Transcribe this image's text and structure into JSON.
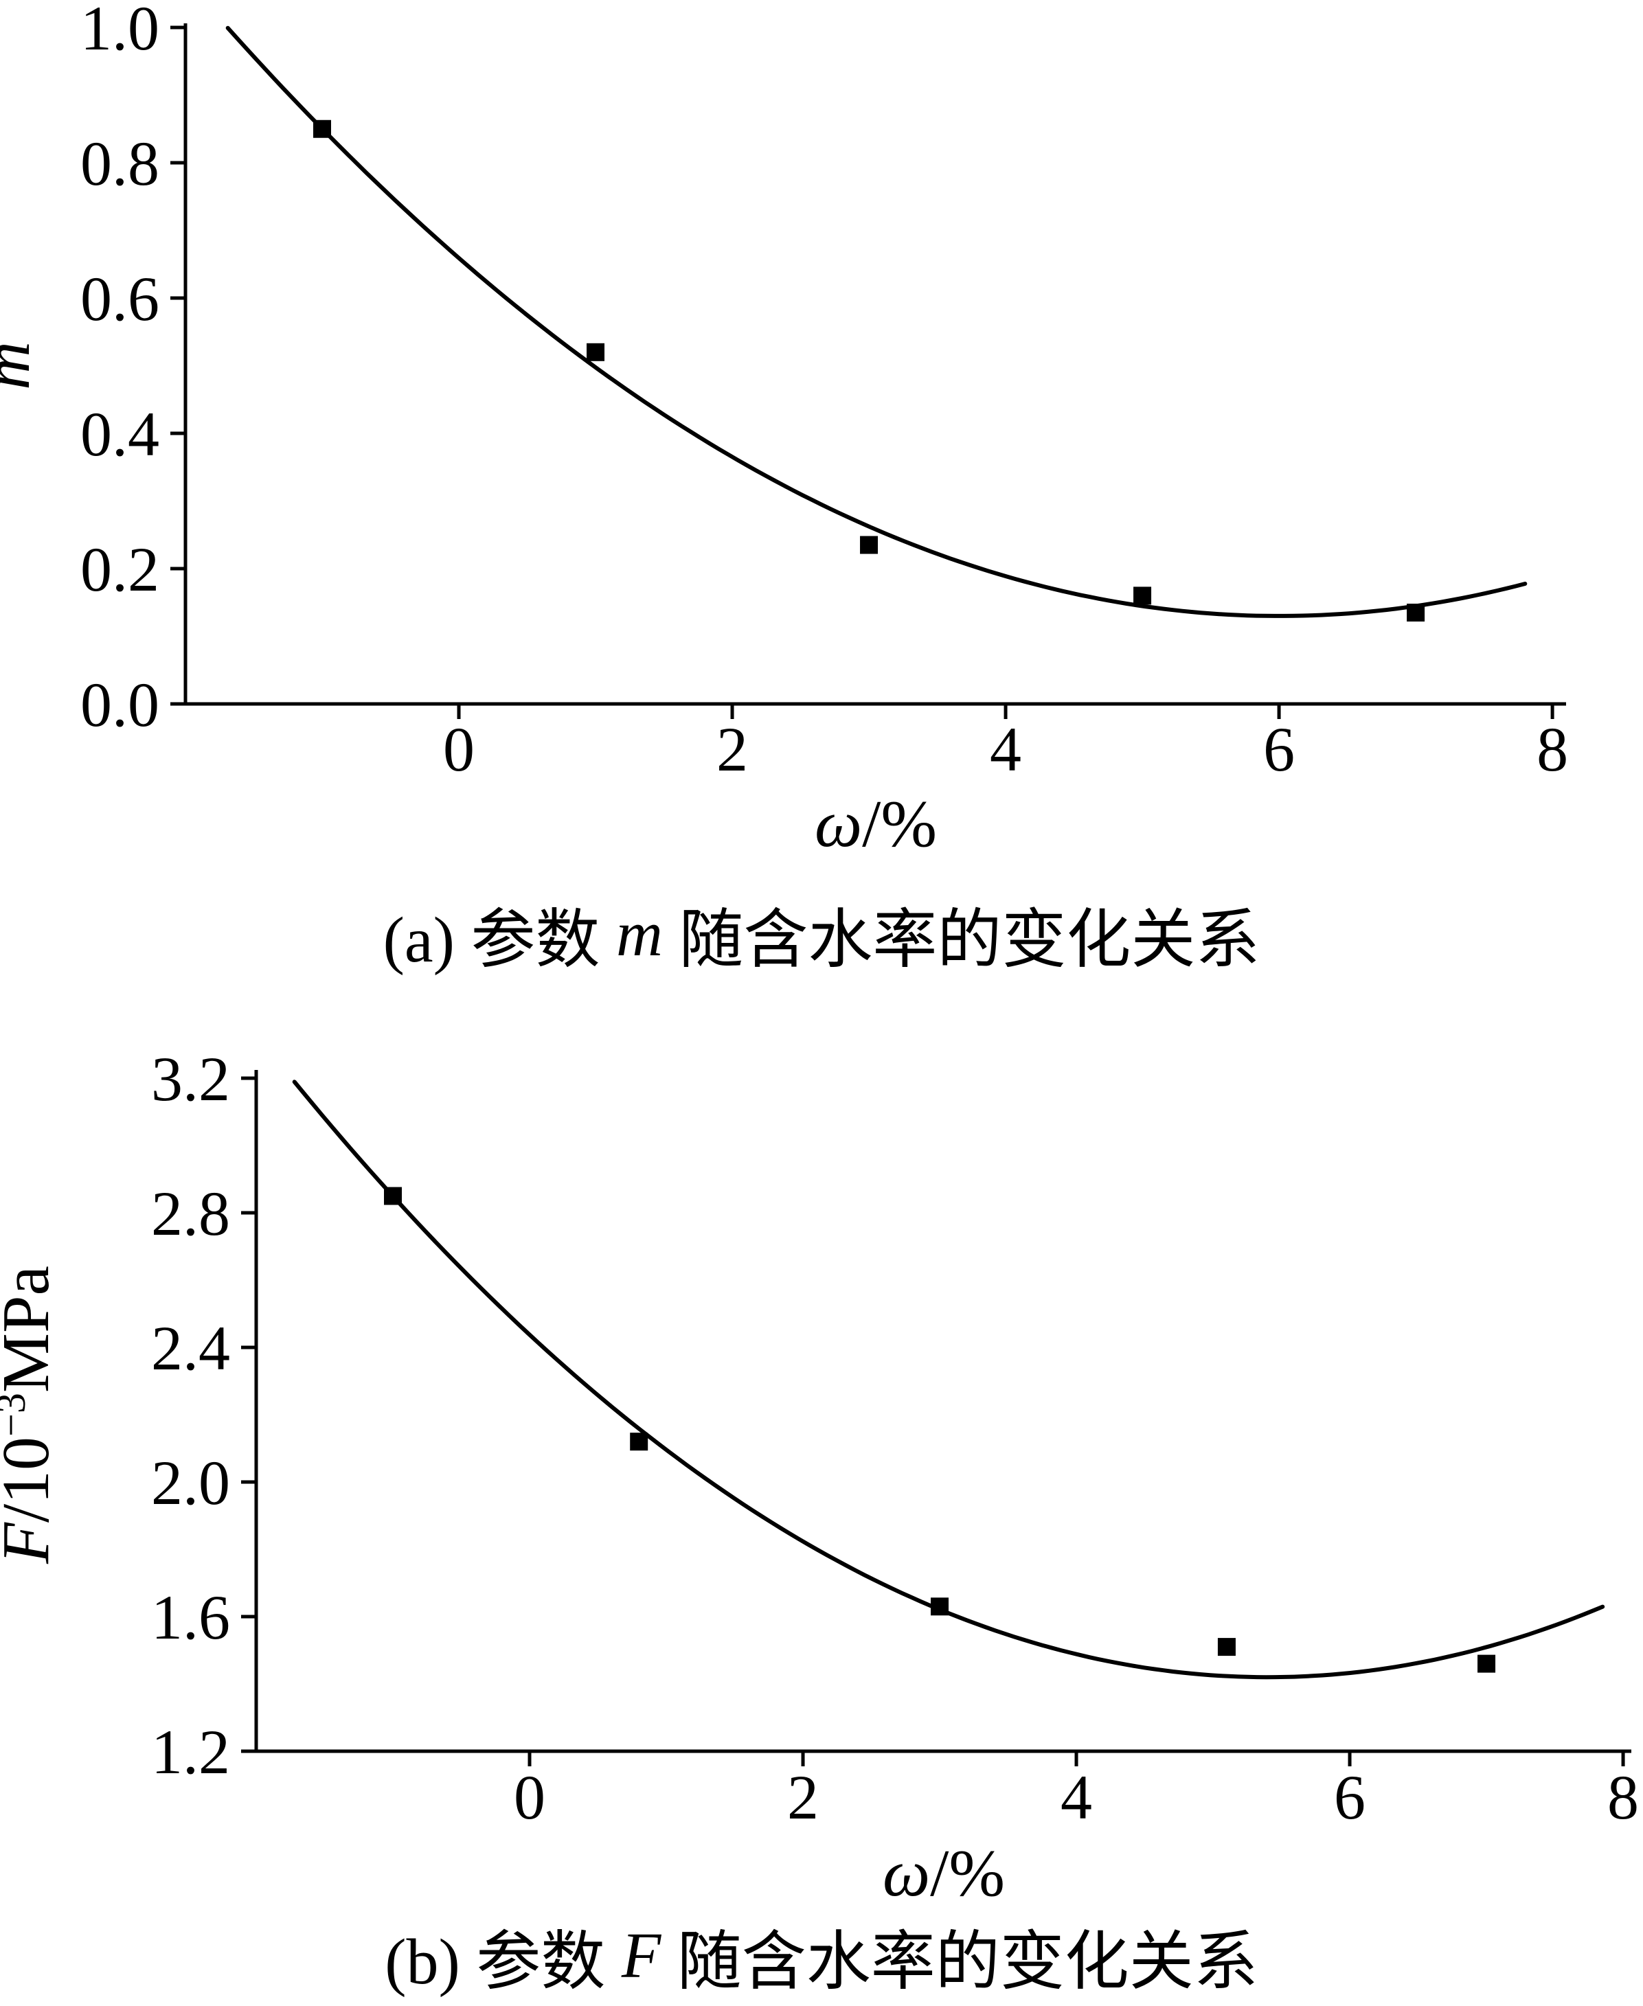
{
  "page": {
    "background": "#ffffff",
    "ink_color": "#000000"
  },
  "chart_data": [
    {
      "id": "a",
      "type": "scatter",
      "title": "",
      "xlabel": "ω/%",
      "xlabel_italic": "ω",
      "xlabel_rest": "/%",
      "ylabel": "m",
      "ylabel_parts": {
        "italic": "m",
        "pre": "",
        "sup": "",
        "unit": ""
      },
      "xlim": [
        -2,
        8.1
      ],
      "ylim": [
        0,
        1.0
      ],
      "x_ticks": [
        "0",
        "2",
        "4",
        "6",
        "8"
      ],
      "y_ticks": [
        "0.0",
        "0.2",
        "0.4",
        "0.6",
        "0.8",
        "1.0"
      ],
      "grid": false,
      "legend": "none",
      "marker": "filled-square",
      "points": [
        [
          -1.0,
          0.85
        ],
        [
          1.0,
          0.52
        ],
        [
          3.0,
          0.235
        ],
        [
          5.0,
          0.16
        ],
        [
          7.0,
          0.135
        ]
      ],
      "fit_curve": {
        "type": "quadratic",
        "a": 0.0147,
        "vertex_x": 6.0,
        "vertex_y": 0.13,
        "x_start": -1.69,
        "x_end": 7.8
      },
      "caption": {
        "prefix": "(a) 参数 ",
        "italic": "m",
        "suffix": " 随含水率的变化关系"
      }
    },
    {
      "id": "b",
      "type": "scatter",
      "title": "",
      "xlabel": "ω/%",
      "xlabel_italic": "ω",
      "xlabel_rest": "/%",
      "ylabel": "F/10−3MPa",
      "ylabel_parts": {
        "italic": "F",
        "pre": "/10",
        "sup": "−3",
        "unit": "MPa"
      },
      "xlim": [
        -2,
        8.06
      ],
      "ylim": [
        1.2,
        3.2
      ],
      "x_ticks": [
        "0",
        "2",
        "4",
        "6",
        "8"
      ],
      "y_ticks": [
        "1.2",
        "1.6",
        "2.0",
        "2.4",
        "2.8",
        "3.2"
      ],
      "grid": false,
      "legend": "none",
      "marker": "filled-square",
      "points": [
        [
          -1.0,
          2.85
        ],
        [
          0.8,
          2.12
        ],
        [
          3.0,
          1.63
        ],
        [
          5.1,
          1.51
        ],
        [
          7.0,
          1.46
        ]
      ],
      "fit_curve": {
        "type": "quadratic",
        "a": 0.0349,
        "vertex_x": 5.4,
        "vertex_y": 1.42,
        "x_start": -1.72,
        "x_end": 7.85
      },
      "caption": {
        "prefix": "(b) 参数 ",
        "italic": "F",
        "suffix": " 随含水率的变化关系"
      }
    }
  ]
}
